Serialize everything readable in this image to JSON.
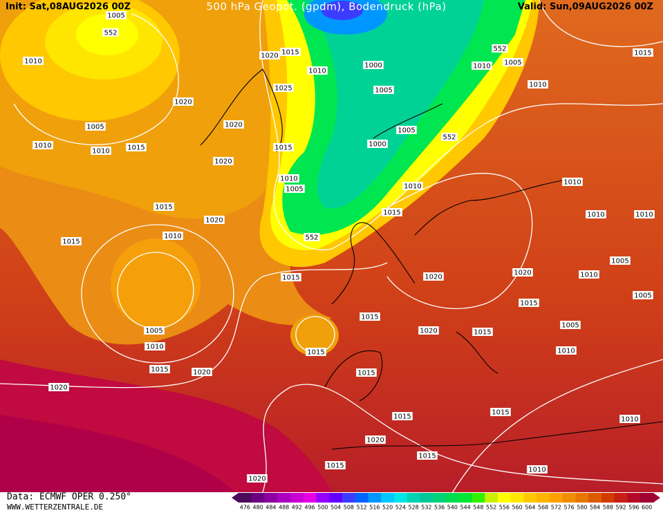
{
  "header": {
    "init": "Init: Sat,08AUG2026 00Z",
    "title": "500 hPa Geopot. (gpdm), Bodendruck (hPa)",
    "valid": "Valid: Sun,09AUG2026 00Z"
  },
  "map": {
    "isobar_labels": [
      "1005",
      "552",
      "1010",
      "1020",
      "1015",
      "1010",
      "1000",
      "1005",
      "1025",
      "1020",
      "1020",
      "1005",
      "1010",
      "1010",
      "1015",
      "1015",
      "1020",
      "1005",
      "1000",
      "552",
      "552",
      "1010",
      "1005",
      "1010",
      "1015",
      "1010",
      "1005",
      "1010",
      "1010",
      "1015",
      "1015",
      "1010",
      "1010",
      "1020",
      "552",
      "1015",
      "1010",
      "1005",
      "1015",
      "1020",
      "1020",
      "1010",
      "1005",
      "1015",
      "1015",
      "1005",
      "1020",
      "1015",
      "1005",
      "1010",
      "1015",
      "1010",
      "1015",
      "1020",
      "1015",
      "1020",
      "1015",
      "1015",
      "1010",
      "1020",
      "1015",
      "1015",
      "1010",
      "1020"
    ]
  },
  "colorbar": {
    "values": [
      476,
      480,
      484,
      488,
      492,
      496,
      500,
      504,
      508,
      512,
      516,
      520,
      524,
      528,
      532,
      536,
      540,
      544,
      548,
      552,
      556,
      560,
      564,
      568,
      572,
      576,
      580,
      584,
      588,
      592,
      596,
      600
    ],
    "colors": [
      "#4b0a5a",
      "#6e0082",
      "#8c00a0",
      "#aa00be",
      "#c800d2",
      "#e600e6",
      "#9600ff",
      "#6400ff",
      "#3c3cff",
      "#0064ff",
      "#0096ff",
      "#00c8ff",
      "#00e6e6",
      "#00d2b4",
      "#00c896",
      "#00d278",
      "#00dc50",
      "#00e632",
      "#32f000",
      "#c8f000",
      "#ffff00",
      "#ffe600",
      "#ffc800",
      "#ffb400",
      "#ffa000",
      "#f08c00",
      "#e67800",
      "#dc5a00",
      "#d23c00",
      "#c81e14",
      "#b40a28",
      "#a00032"
    ]
  },
  "footer": {
    "source": "Data: ECMWF OPER 0.250°",
    "site": "WWW.WETTERZENTRALE.DE"
  }
}
